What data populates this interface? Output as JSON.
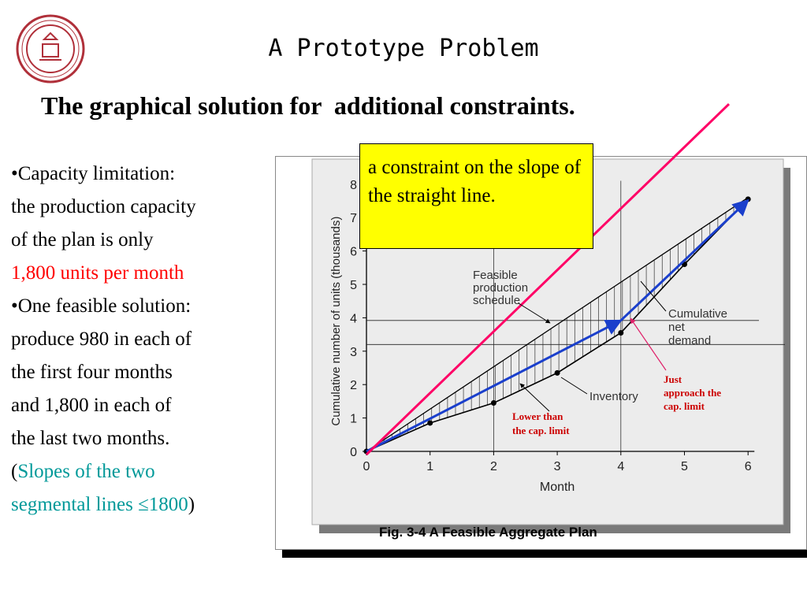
{
  "slide": {
    "title": "A Prototype Problem",
    "subtitle": "The graphical solution for  additional constraints."
  },
  "bullets": {
    "b1_line1": "•Capacity limitation:",
    "b1_line2": "the production capacity",
    "b1_line3": "of the plan is only",
    "b1_line4": "1,800 units per  month",
    "b2_line1": "•One feasible solution:",
    "b2_line2": "produce 980 in each of",
    "b2_line3": "the first four months",
    "b2_line4": "and 1,800 in each of",
    "b2_line5": "the last two months.",
    "b2_line6_open": "(",
    "b2_line6_teal": "Slopes of the two",
    "b2_line7_teal": "segmental lines ≤1800",
    "b2_line7_close": ")"
  },
  "callout": {
    "text": "a constraint on the slope of the straight line."
  },
  "figure": {
    "caption": "Fig. 3-4 A Feasible Aggregate Plan"
  },
  "annotations": {
    "feasible": [
      "Feasible",
      "production",
      "schedule"
    ],
    "cumulative_net_demand": [
      "Cumulative",
      "net",
      "demand"
    ],
    "inventory": "Inventory",
    "lower_than_cap": [
      "Lower than",
      "the cap. limit"
    ],
    "just_approach": [
      "Just",
      "approach the",
      "cap. limit"
    ]
  },
  "colors": {
    "red_text": "#ff0000",
    "teal_text": "#009999",
    "callout_bg": "#ffff00",
    "constraint_line": "#ff0066",
    "plan_line": "#1a3fcc",
    "annotation_red": "#cc0000",
    "pointer_pink": "#e0206a"
  },
  "chart_data": {
    "type": "line",
    "title": "",
    "xlabel": "Month",
    "ylabel": "Cumulative number of units (thousands)",
    "xlim": [
      0,
      6
    ],
    "ylim": [
      0,
      8
    ],
    "x_ticks": [
      "0",
      "1",
      "2",
      "3",
      "4",
      "5",
      "6"
    ],
    "y_ticks": [
      "0",
      "1",
      "2",
      "3",
      "4",
      "5",
      "6",
      "7",
      "8"
    ],
    "series": [
      {
        "name": "Cumulative net demand",
        "x": [
          0,
          1,
          2,
          3,
          4,
          5,
          6
        ],
        "y": [
          0,
          0.85,
          1.45,
          2.35,
          3.55,
          5.6,
          7.55
        ]
      },
      {
        "name": "Feasible production schedule",
        "x": [
          0,
          4,
          6
        ],
        "y": [
          0,
          3.92,
          7.52
        ]
      }
    ],
    "upper_feasible_bound": {
      "x": [
        0,
        6
      ],
      "y": [
        0,
        7.6
      ]
    },
    "slope_constraint_line": {
      "x": [
        0,
        5.7
      ],
      "y": [
        0,
        10.4
      ]
    },
    "capacity_reference_levels": [
      3.92,
      3.2
    ]
  }
}
